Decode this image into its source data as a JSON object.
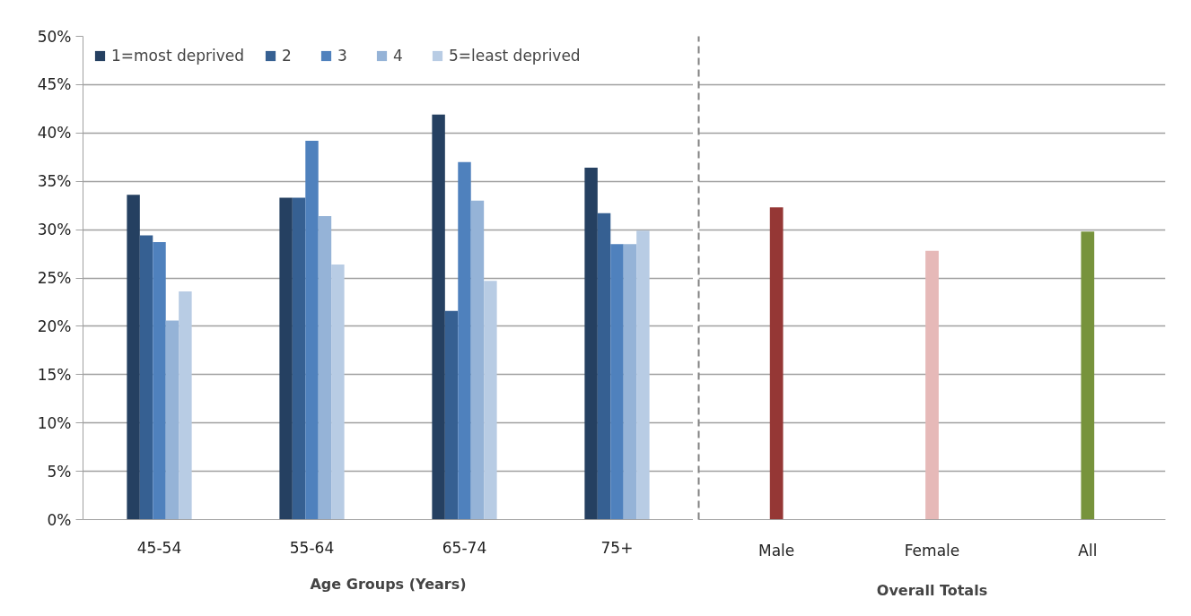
{
  "chart_data": [
    {
      "type": "bar",
      "xlabel": "Age Groups (Years)",
      "categories": [
        "45-54",
        "55-64",
        "65-74",
        "75+"
      ],
      "series": [
        {
          "name": "1=most deprived",
          "color": "#254061",
          "values": [
            33.6,
            33.3,
            41.9,
            36.4
          ]
        },
        {
          "name": "2",
          "color": "#366092",
          "values": [
            29.4,
            33.3,
            21.6,
            31.7
          ]
        },
        {
          "name": "3",
          "color": "#4f81bd",
          "values": [
            28.7,
            39.2,
            37.0,
            28.5
          ]
        },
        {
          "name": "4",
          "color": "#95b3d7",
          "values": [
            20.6,
            31.4,
            33.0,
            28.5
          ]
        },
        {
          "name": "5=least deprived",
          "color": "#b8cce4",
          "values": [
            23.6,
            26.4,
            24.7,
            29.9
          ]
        }
      ],
      "ylim": [
        0,
        50
      ],
      "yticks": [
        {
          "value": 0,
          "label": "0%"
        },
        {
          "value": 5,
          "label": "5%"
        },
        {
          "value": 10,
          "label": "10%"
        },
        {
          "value": 15,
          "label": "15%"
        },
        {
          "value": 20,
          "label": "20%"
        },
        {
          "value": 25,
          "label": "25%"
        },
        {
          "value": 30,
          "label": "30%"
        },
        {
          "value": 35,
          "label": "35%"
        },
        {
          "value": 40,
          "label": "40%"
        },
        {
          "value": 45,
          "label": "45%"
        },
        {
          "value": 50,
          "label": "50%"
        }
      ],
      "grid": "y",
      "legend": "top left"
    },
    {
      "type": "bar",
      "xlabel": "Overall Totals",
      "categories": [
        "Male",
        "Female",
        "All"
      ],
      "series": [
        {
          "colors": [
            "#953735",
            "#e6b9b8",
            "#77933c"
          ],
          "values": [
            32.3,
            27.8,
            29.8
          ]
        }
      ],
      "ylim": [
        0,
        50
      ],
      "yticks": [
        0,
        5,
        10,
        15,
        20,
        25,
        30,
        35,
        40,
        45,
        50
      ],
      "grid": "y",
      "tick_labels": "x"
    }
  ]
}
